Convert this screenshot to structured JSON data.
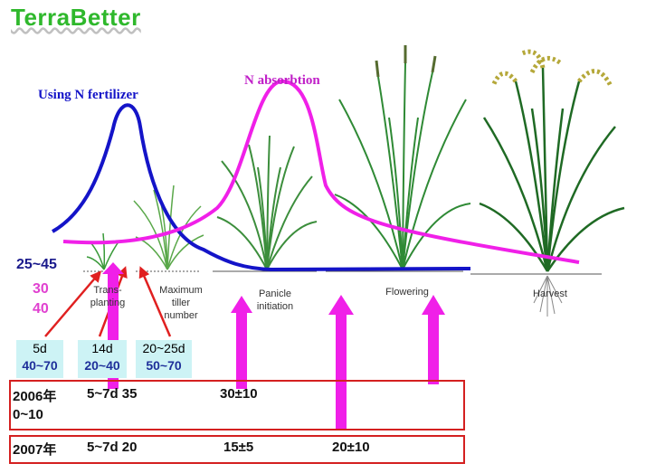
{
  "logo": "TerraBetter",
  "curves": {
    "fertilizer_label": "Using N fertilizer",
    "absorption_label": "N absorbtion",
    "fertilizer_color": "#1414c8",
    "absorption_color": "#f020e8"
  },
  "left_values": {
    "blue": "25~45",
    "magenta_1": "30",
    "magenta_2": "40"
  },
  "stages": [
    {
      "line1": "Trans-",
      "line2": "planting",
      "line3": ""
    },
    {
      "line1": "Maximum",
      "line2": "tiller",
      "line3": "number"
    },
    {
      "line1": "Panicle",
      "line2": "initiation",
      "line3": ""
    },
    {
      "line1": "Flowering",
      "line2": "",
      "line3": ""
    },
    {
      "line1": "Harvest",
      "line2": "",
      "line3": ""
    }
  ],
  "boxes": [
    {
      "days": "5d",
      "range": "40~70"
    },
    {
      "days": "14d",
      "range": "20~40"
    },
    {
      "days": "20~25d",
      "range": "50~70"
    }
  ],
  "rows": {
    "r2006": {
      "year": "2006年",
      "base": "0~10",
      "v1": "5~7d 35",
      "v2": "30±10"
    },
    "r2007": {
      "year": "2007年",
      "v1": "5~7d 20",
      "v2": "15±5",
      "v3": "20±10"
    }
  }
}
